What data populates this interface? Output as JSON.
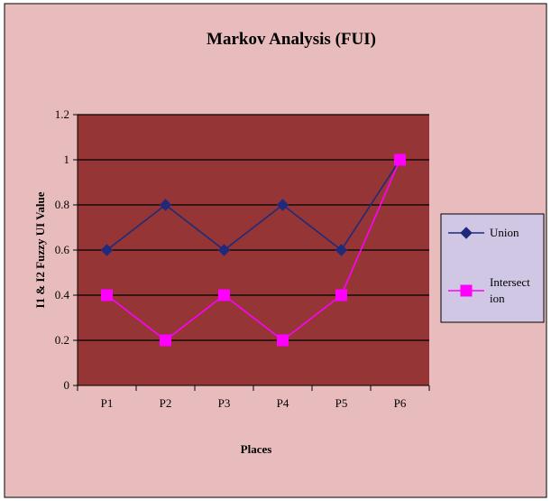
{
  "chart_data": {
    "type": "line",
    "title": "Markov Analysis (FUI)",
    "xlabel": "Places",
    "ylabel": "I1 & I2 Fuzzy UI Value",
    "categories": [
      "P1",
      "P2",
      "P3",
      "P4",
      "P5",
      "P6"
    ],
    "ylim": [
      0,
      1.2
    ],
    "yticks": [
      "0",
      "0.2",
      "0.4",
      "0.6",
      "0.8",
      "1",
      "1.2"
    ],
    "grid": true,
    "legend": "right",
    "series": [
      {
        "name": "Union",
        "values": [
          0.6,
          0.8,
          0.6,
          0.8,
          0.6,
          1.0
        ],
        "color": "#1f2a7a",
        "marker": "diamond"
      },
      {
        "name": "Intersection",
        "legend_lines": [
          "Intersect",
          "ion"
        ],
        "values": [
          0.4,
          0.2,
          0.4,
          0.2,
          0.4,
          1.0
        ],
        "color": "#ff00ff",
        "marker": "square"
      }
    ],
    "colors": {
      "chart_background": "#e8bcbc",
      "plot_background": "#953535",
      "gridline": "#000000",
      "legend_background": "#cfc7e3"
    }
  }
}
